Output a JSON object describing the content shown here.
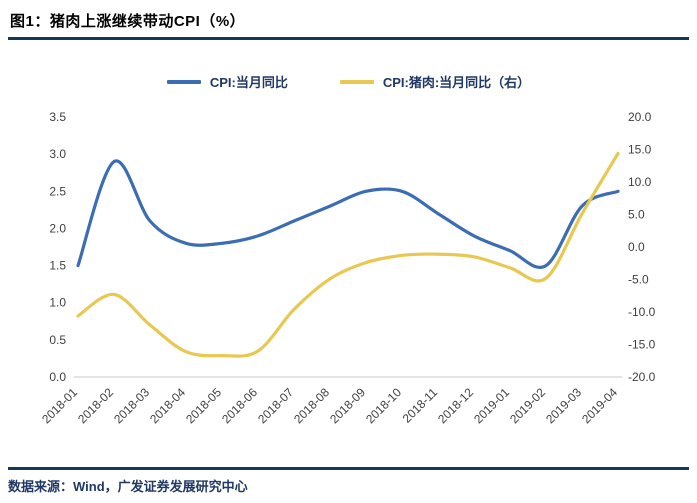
{
  "header": {
    "title": "图1：猪肉上涨继续带动CPI（%）"
  },
  "footer": {
    "source": "数据来源：Wind，广发证券发展研究中心"
  },
  "colors": {
    "cpi_line": "#3B6DB4",
    "pork_line": "#E8C850",
    "rule": "#16365C",
    "axis_text": "#3f3f3f",
    "axis_line": "#c9c9c9"
  },
  "chart_data": {
    "type": "line",
    "title": "图1：猪肉上涨继续带动CPI（%）",
    "grid": false,
    "legend_position": "top",
    "categories": [
      "2018-01",
      "2018-02",
      "2018-03",
      "2018-04",
      "2018-05",
      "2018-06",
      "2018-07",
      "2018-08",
      "2018-09",
      "2018-10",
      "2018-11",
      "2018-12",
      "2019-01",
      "2019-02",
      "2019-03",
      "2019-04"
    ],
    "series": [
      {
        "name": "CPI:当月同比",
        "axis": "left",
        "color_key": "cpi_line",
        "values": [
          1.5,
          2.9,
          2.1,
          1.8,
          1.8,
          1.9,
          2.1,
          2.3,
          2.5,
          2.5,
          2.2,
          1.9,
          1.7,
          1.5,
          2.3,
          2.5
        ]
      },
      {
        "name": "CPI:猪肉:当月同比（右）",
        "axis": "right",
        "color_key": "pork_line",
        "values": [
          -10.6,
          -7.3,
          -12.0,
          -16.1,
          -16.7,
          -16.0,
          -9.6,
          -4.9,
          -2.4,
          -1.3,
          -1.1,
          -1.5,
          -3.2,
          -4.8,
          5.1,
          14.4
        ]
      }
    ],
    "left_axis": {
      "min": 0,
      "max": 3.5,
      "step": 0.5,
      "ticks": [
        "3.5",
        "3.0",
        "2.5",
        "2.0",
        "1.5",
        "1.0",
        "0.5",
        "0.0"
      ]
    },
    "right_axis": {
      "min": -20,
      "max": 20,
      "step": 5,
      "ticks": [
        "20.0",
        "15.0",
        "10.0",
        "5.0",
        "0.0",
        "-5.0",
        "-10.0",
        "-15.0",
        "-20.0"
      ]
    }
  }
}
